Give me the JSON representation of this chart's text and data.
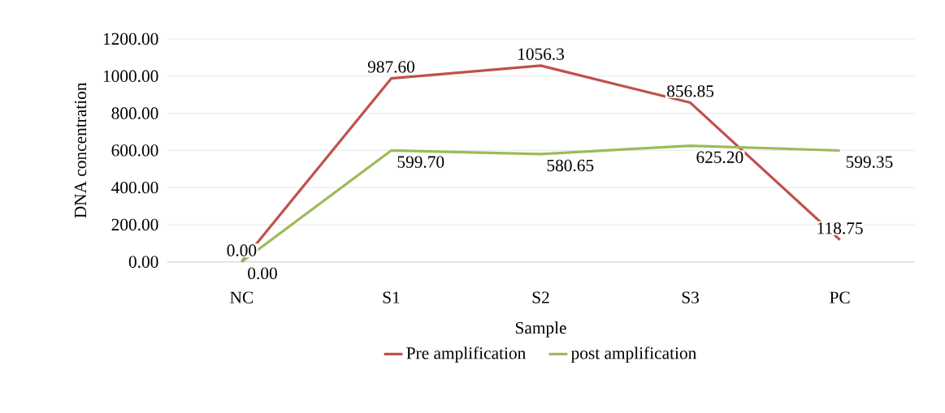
{
  "chart_data": {
    "type": "line",
    "xlabel": "Sample",
    "ylabel": "DNA concentration",
    "categories": [
      "NC",
      "S1",
      "S2",
      "S3",
      "PC"
    ],
    "series": [
      {
        "name": "Pre amplification",
        "color": "#c0504d",
        "values": [
          0,
          987.6,
          1056.3,
          856.85,
          118.75
        ],
        "value_labels": [
          "0.00",
          "987.60",
          "1056.3",
          "856.85",
          "118.75"
        ]
      },
      {
        "name": "post amplification",
        "color": "#9bbb59",
        "values": [
          0,
          599.7,
          580.65,
          625.2,
          599.35
        ],
        "value_labels": [
          "0.00",
          "599.70",
          "580.65",
          "625.20",
          "599.35"
        ]
      }
    ],
    "ylim": [
      0,
      1200
    ],
    "yticks": [
      {
        "value": 0,
        "label": "0.00"
      },
      {
        "value": 200,
        "label": "200.00"
      },
      {
        "value": 400,
        "label": "400.00"
      },
      {
        "value": 600,
        "label": "600.00"
      },
      {
        "value": 800,
        "label": "800.00"
      },
      {
        "value": 1000,
        "label": "1000.00"
      },
      {
        "value": 1200,
        "label": "1200.00"
      }
    ],
    "grid": "y",
    "legend": "bottom",
    "marker": "none",
    "line_style": "solid"
  }
}
